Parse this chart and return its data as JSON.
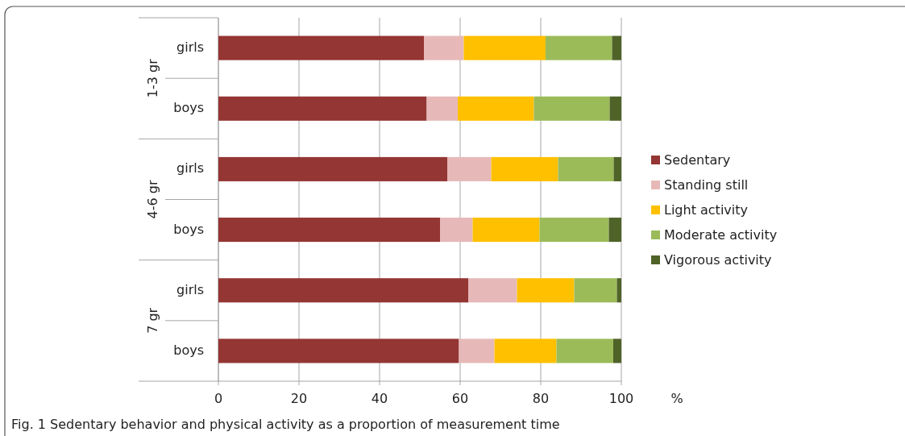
{
  "chart_data": {
    "type": "bar",
    "orientation": "horizontal",
    "stacked": true,
    "title": "Fig. 1 Sedentary behavior and physical activity as a proportion of measurement time",
    "xlabel": "%",
    "categories": [
      "girls",
      "boys",
      "girls",
      "boys",
      "girls",
      "boys"
    ],
    "annotations": [
      "1-3 gr",
      "4-6 gr",
      "7 gr"
    ],
    "series": [
      {
        "name": "Sedentary",
        "color": "#943634",
        "values": [
          51.0,
          51.7,
          56.8,
          55.0,
          62.0,
          59.7
        ]
      },
      {
        "name": "Standing still",
        "color": "#e6b9b8",
        "values": [
          9.9,
          7.7,
          10.9,
          8.1,
          12.1,
          8.8
        ]
      },
      {
        "name": "Light activity",
        "color": "#ffc000",
        "values": [
          20.3,
          18.9,
          16.6,
          16.6,
          14.2,
          15.4
        ]
      },
      {
        "name": "Moderate activity",
        "color": "#9bbb59",
        "values": [
          16.5,
          18.8,
          13.8,
          17.2,
          10.6,
          14.1
        ]
      },
      {
        "name": "Vigorous activity",
        "color": "#4f6228",
        "values": [
          2.3,
          2.9,
          1.9,
          3.1,
          1.1,
          2.0
        ]
      }
    ],
    "xlim": [
      0,
      100
    ],
    "xticks": [
      0,
      20,
      40,
      60,
      80,
      100
    ],
    "grid": "x",
    "legend": "right"
  }
}
